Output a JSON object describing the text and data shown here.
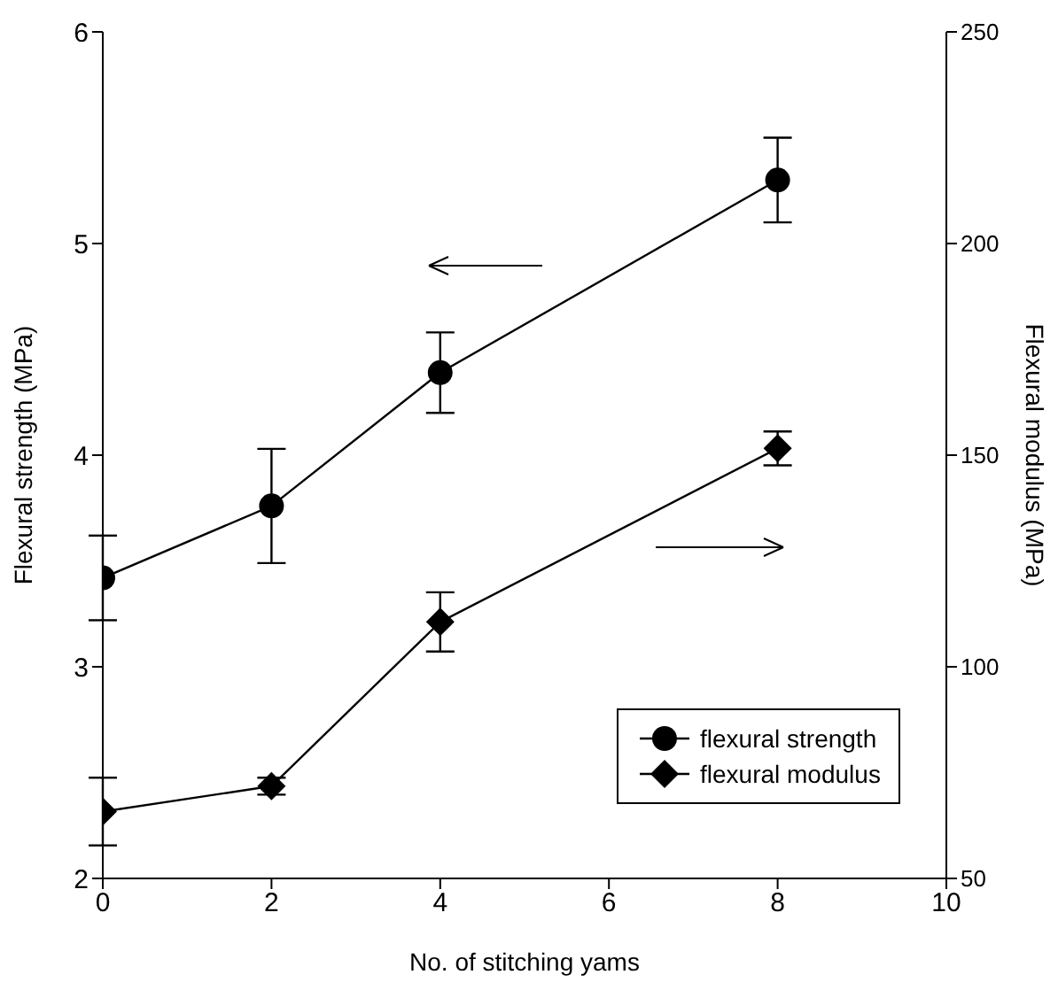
{
  "chart_data": {
    "type": "line",
    "xlabel": "No. of stitching yams",
    "ylabel": "Flexural strength (MPa)",
    "y2label": "Flexural modulus (MPa)",
    "x": [
      0,
      2,
      4,
      8
    ],
    "series": [
      {
        "name": "flexural strength",
        "color": "#000000",
        "marker": "circle",
        "values": [
          3.42,
          3.76,
          4.39,
          5.3
        ],
        "errors": [
          0.2,
          0.27,
          0.19,
          0.2
        ]
      },
      {
        "name": "flexural modulus",
        "color": "#000000",
        "marker": "diamond",
        "axis": "y2",
        "values": [
          65.8,
          71.8,
          110.6,
          151.6
        ],
        "errors": [
          8,
          2,
          7,
          4
        ]
      }
    ],
    "xlim": [
      0,
      10
    ],
    "xticks": [
      0,
      2,
      4,
      6,
      8,
      10
    ],
    "ylim": [
      2,
      6
    ],
    "yticks": [
      2,
      3,
      4,
      5,
      6
    ],
    "y2lim": [
      50,
      250
    ],
    "y2ticks": [
      50,
      100,
      150,
      200,
      250
    ],
    "grid": false,
    "legend": "bottom right",
    "line_style": "solid"
  }
}
